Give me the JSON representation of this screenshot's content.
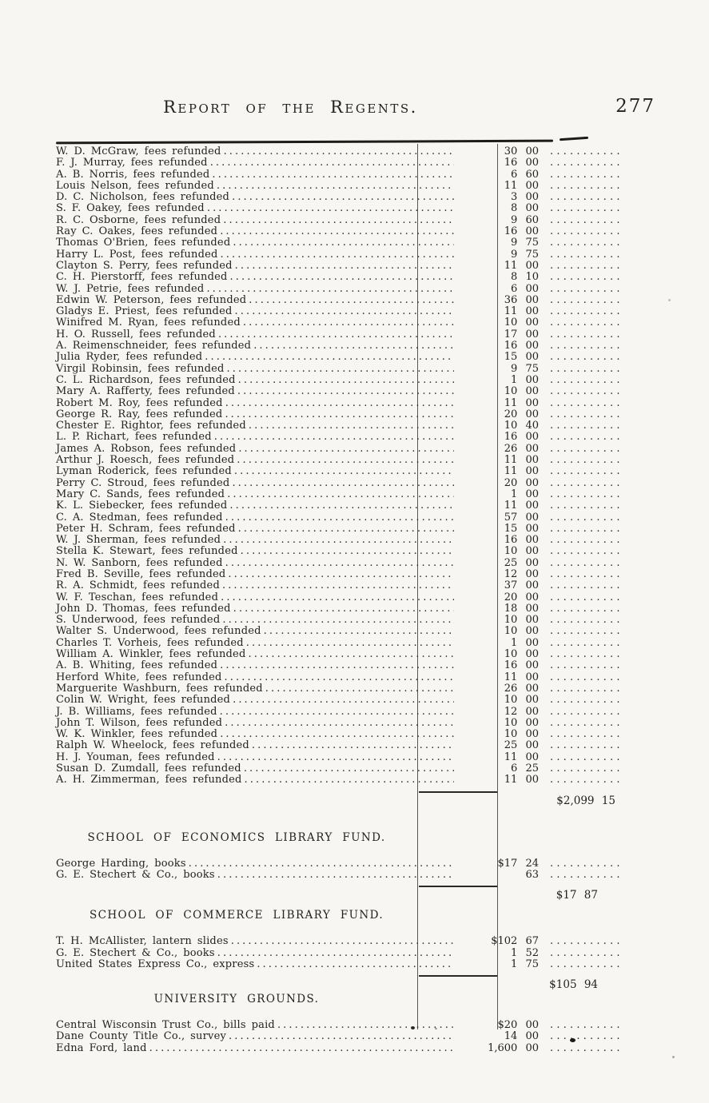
{
  "colors": {
    "paper": "#f7f6f3",
    "ink": "#232220"
  },
  "header": {
    "title": "Report of the Regents.",
    "page_number": "277"
  },
  "main_table": {
    "rows": [
      {
        "name": "W. D. McGraw, fees refunded",
        "amount": "30 00"
      },
      {
        "name": "F. J. Murray, fees refunded",
        "amount": "16 00"
      },
      {
        "name": "A. B. Norris, fees refunded",
        "amount": "6 60"
      },
      {
        "name": "Louis Nelson, fees refunded",
        "amount": "11 00"
      },
      {
        "name": "D. C. Nicholson, fees refunded",
        "amount": "3 00"
      },
      {
        "name": "S. F. Oakey, fees refunded",
        "amount": "8 00"
      },
      {
        "name": "R. C. Osborne, fees refunded",
        "amount": "9 60"
      },
      {
        "name": "Ray C. Oakes, fees refunded",
        "amount": "16 00"
      },
      {
        "name": "Thomas O'Brien, fees refunded",
        "amount": "9 75"
      },
      {
        "name": "Harry L. Post, fees refunded",
        "amount": "9 75"
      },
      {
        "name": "Clayton S. Perry, fees refunded",
        "amount": "11 00"
      },
      {
        "name": "C. H. Pierstorff, fees refunded",
        "amount": "8 10"
      },
      {
        "name": "W. J. Petrie, fees refunded",
        "amount": "6 00"
      },
      {
        "name": "Edwin W. Peterson, fees refunded",
        "amount": "36 00"
      },
      {
        "name": "Gladys E. Priest, fees refunded",
        "amount": "11 00"
      },
      {
        "name": "Winifred M. Ryan, fees refunded",
        "amount": "10 00"
      },
      {
        "name": "H. O. Russell, fees refunded",
        "amount": "17 00"
      },
      {
        "name": "A. Reimenschneider, fees refunded",
        "amount": "16 00"
      },
      {
        "name": "Julia Ryder, fees refunded",
        "amount": "15 00"
      },
      {
        "name": "Virgil Robinsin, fees refunded",
        "amount": "9 75"
      },
      {
        "name": "C. L. Richardson, fees refunded",
        "amount": "1 00"
      },
      {
        "name": "Mary A. Rafferty, fees refunded",
        "amount": "10 00"
      },
      {
        "name": "Robert M. Roy, fees refunded",
        "amount": "11 00"
      },
      {
        "name": "George R. Ray, fees refunded",
        "amount": "20 00"
      },
      {
        "name": "Chester E. Rightor, fees refunded",
        "amount": "10 40"
      },
      {
        "name": "L. P. Richart, fees refunded",
        "amount": "16 00"
      },
      {
        "name": "James A. Robson, fees refunded",
        "amount": "26 00"
      },
      {
        "name": "Arthur J. Roesch, fees refunded",
        "amount": "11 00"
      },
      {
        "name": "Lyman Roderick, fees refunded",
        "amount": "11 00"
      },
      {
        "name": "Perry C. Stroud, fees refunded",
        "amount": "20 00"
      },
      {
        "name": "Mary C. Sands, fees refunded",
        "amount": "1 00"
      },
      {
        "name": "K. L. Siebecker, fees refunded",
        "amount": "11 00"
      },
      {
        "name": "C. A. Stedman, fees refunded",
        "amount": "57 00"
      },
      {
        "name": "Peter H. Schram, fees refunded",
        "amount": "15 00"
      },
      {
        "name": "W. J. Sherman, fees refunded",
        "amount": "16 00"
      },
      {
        "name": "Stella K. Stewart, fees refunded",
        "amount": "10 00"
      },
      {
        "name": "N. W. Sanborn, fees refunded",
        "amount": "25 00"
      },
      {
        "name": "Fred B. Seville, fees refunded",
        "amount": "12 00"
      },
      {
        "name": "R. A. Schmidt, fees refunded",
        "amount": "37 00"
      },
      {
        "name": "W. F. Teschan, fees refunded",
        "amount": "20 00"
      },
      {
        "name": "John D. Thomas, fees refunded",
        "amount": "18 00"
      },
      {
        "name": "S. Underwood, fees refunded",
        "amount": "10 00"
      },
      {
        "name": "Walter S. Underwood, fees refunded",
        "amount": "10 00"
      },
      {
        "name": "Charles T. Vorheis, fees refunded",
        "amount": "1 00"
      },
      {
        "name": "William A. Winkler, fees refunded",
        "amount": "10 00"
      },
      {
        "name": "A. B. Whiting, fees refunded",
        "amount": "16 00"
      },
      {
        "name": "Herford White, fees refunded",
        "amount": "11 00"
      },
      {
        "name": "Marguerite Washburn, fees refunded",
        "amount": "26 00"
      },
      {
        "name": "Colin W. Wright, fees refunded",
        "amount": "10 00"
      },
      {
        "name": "J. B. Williams, fees refunded",
        "amount": "12 00"
      },
      {
        "name": "John T. Wilson, fees refunded",
        "amount": "10 00"
      },
      {
        "name": "W. K. Winkler, fees refunded",
        "amount": "10 00"
      },
      {
        "name": "Ralph W. Wheelock, fees refunded",
        "amount": "25 00"
      },
      {
        "name": "H. J. Youman, fees refunded",
        "amount": "11 00"
      },
      {
        "name": "Susan D. Zumdall, fees refunded",
        "amount": "6 25"
      },
      {
        "name": "A. H. Zimmerman, fees refunded",
        "amount": "11 00"
      }
    ],
    "total": "$2,099 15"
  },
  "sections": [
    {
      "heading": "SCHOOL OF ECONOMICS LIBRARY FUND.",
      "rows": [
        {
          "name": "George Harding, books",
          "amount": "$17 24"
        },
        {
          "name": "G. E. Stechert & Co., books",
          "amount": "63"
        }
      ],
      "total": "$17 87"
    },
    {
      "heading": "SCHOOL OF COMMERCE LIBRARY FUND.",
      "rows": [
        {
          "name": "T. H. McAllister, lantern slides",
          "amount": "$102 67"
        },
        {
          "name": "G. E. Stechert & Co., books",
          "amount": "1 52"
        },
        {
          "name": "United States Express Co., express",
          "amount": "1 75"
        }
      ],
      "total": "$105 94"
    },
    {
      "heading": "UNIVERSITY GROUNDS.",
      "rows": [
        {
          "name": "Central Wisconsin Trust Co., bills paid",
          "amount": "$20 00"
        },
        {
          "name": "Dane County Title Co., survey",
          "amount": "14 00"
        },
        {
          "name": "Edna Ford, land",
          "amount": "1,600 00"
        }
      ],
      "total": null
    }
  ]
}
